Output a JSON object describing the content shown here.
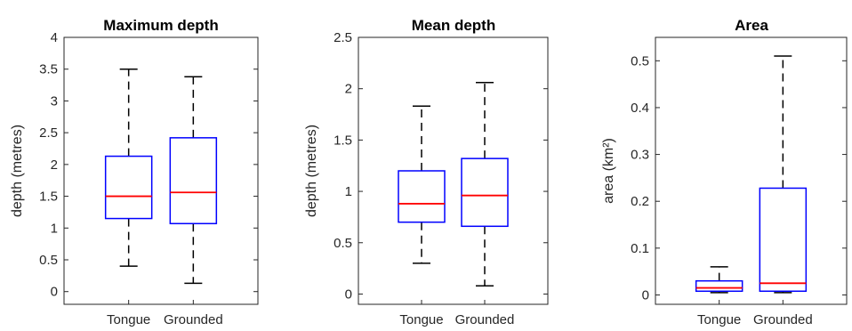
{
  "chart_data": [
    {
      "type": "box",
      "title": "Maximum depth",
      "xlabel": "",
      "ylabel": "depth (metres)",
      "ylim": [
        -0.2,
        4
      ],
      "yticks": [
        "0",
        "0.5",
        "1",
        "1.5",
        "2",
        "2.5",
        "3",
        "3.5",
        "4"
      ],
      "categories": [
        "Tongue",
        "Grounded"
      ],
      "boxes": [
        {
          "min": 0.4,
          "q1": 1.15,
          "median": 1.5,
          "q3": 2.13,
          "max": 3.5
        },
        {
          "min": 0.13,
          "q1": 1.07,
          "median": 1.56,
          "q3": 2.42,
          "max": 3.38
        }
      ]
    },
    {
      "type": "box",
      "title": "Mean depth",
      "xlabel": "",
      "ylabel": "depth (metres)",
      "ylim": [
        -0.1,
        2.5
      ],
      "yticks": [
        "0",
        "0.5",
        "1",
        "1.5",
        "2",
        "2.5"
      ],
      "categories": [
        "Tongue",
        "Grounded"
      ],
      "boxes": [
        {
          "min": 0.3,
          "q1": 0.7,
          "median": 0.88,
          "q3": 1.2,
          "max": 1.83
        },
        {
          "min": 0.08,
          "q1": 0.66,
          "median": 0.96,
          "q3": 1.32,
          "max": 2.06
        }
      ]
    },
    {
      "type": "box",
      "title": "Area",
      "xlabel": "",
      "ylabel": "area (km²)",
      "ylim": [
        -0.02,
        0.55
      ],
      "yticks": [
        "0",
        "0.1",
        "0.2",
        "0.3",
        "0.4",
        "0.5"
      ],
      "categories": [
        "Tongue",
        "Grounded"
      ],
      "boxes": [
        {
          "min": 0.005,
          "q1": 0.008,
          "median": 0.015,
          "q3": 0.03,
          "max": 0.06
        },
        {
          "min": 0.005,
          "q1": 0.008,
          "median": 0.025,
          "q3": 0.228,
          "max": 0.51
        }
      ]
    }
  ],
  "colors": {
    "box": "#0000ff",
    "median": "#ff0000",
    "whisker": "#000000"
  }
}
